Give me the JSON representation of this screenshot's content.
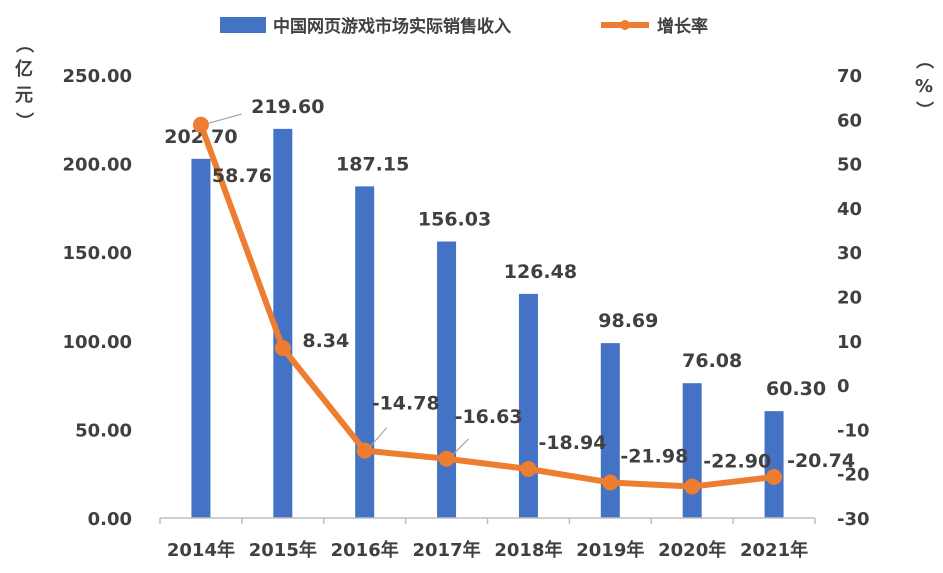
{
  "chart_data": {
    "type": "bar+line",
    "categories": [
      "2014年",
      "2015年",
      "2016年",
      "2017年",
      "2018年",
      "2019年",
      "2020年",
      "2021年"
    ],
    "series": [
      {
        "name": "中国网页游戏市场实际销售收入",
        "type": "bar",
        "axis": "left",
        "values": [
          202.7,
          219.6,
          187.15,
          156.03,
          126.48,
          98.69,
          76.08,
          60.3
        ],
        "labels": [
          "202.70",
          "219.60",
          "187.15",
          "156.03",
          "126.48",
          "98.69",
          "76.08",
          "60.30"
        ],
        "color": "#4472C4"
      },
      {
        "name": "增长率",
        "type": "line",
        "axis": "right",
        "values": [
          58.76,
          8.34,
          -14.78,
          -16.63,
          -18.94,
          -21.98,
          -22.9,
          -20.74
        ],
        "labels": [
          "58.76",
          "8.34",
          "-14.78",
          "-16.63",
          "-18.94",
          "-21.98",
          "-22.90",
          "-20.74"
        ],
        "color": "#ED7D31"
      }
    ],
    "left_axis": {
      "label_chars": [
        "（",
        "亿",
        "元",
        "）"
      ],
      "range": [
        0,
        250
      ],
      "ticks": [
        "0.00",
        "50.00",
        "100.00",
        "150.00",
        "200.00",
        "250.00"
      ]
    },
    "right_axis": {
      "label_chars": [
        "（",
        "%",
        "）"
      ],
      "range": [
        -30,
        70
      ],
      "ticks": [
        "-30",
        "-20",
        "-10",
        "0",
        "10",
        "20",
        "30",
        "40",
        "50",
        "60",
        "70"
      ]
    },
    "legend_position": "top-center",
    "grid": false
  }
}
